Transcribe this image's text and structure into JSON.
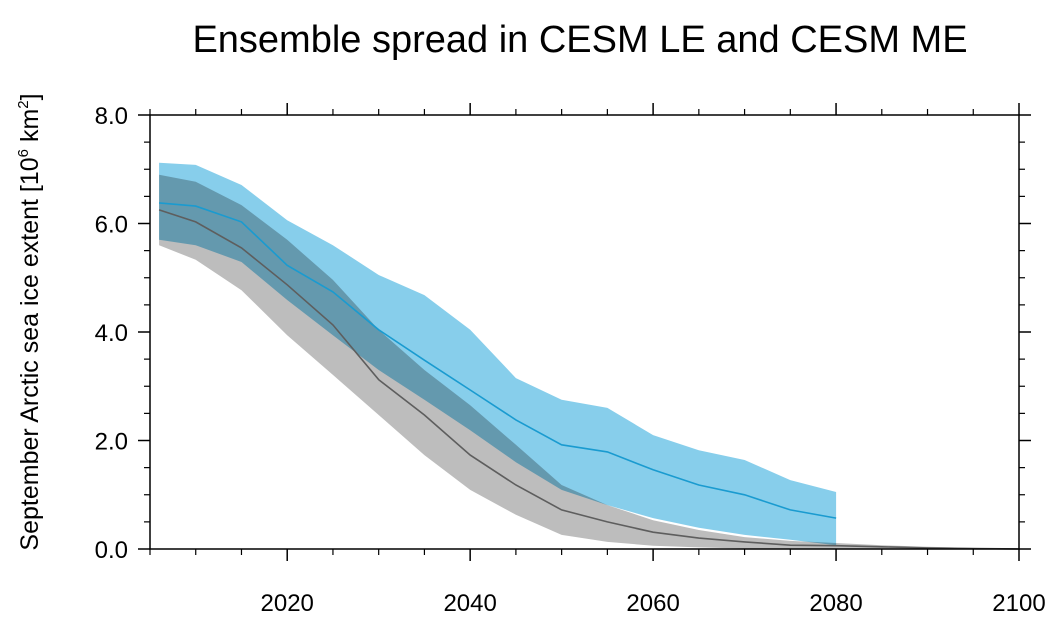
{
  "chart_data": {
    "type": "band",
    "title": "Ensemble spread in CESM LE and CESM ME",
    "ylabel": [
      "September Arctic sea ice extent [10",
      "6",
      " km",
      "2",
      "]"
    ],
    "xlim": [
      2005,
      2100
    ],
    "ylim": [
      0,
      8
    ],
    "xticks": [
      2020,
      2040,
      2060,
      2080,
      2100
    ],
    "xminorticks": [
      2005,
      2010,
      2015,
      2025,
      2030,
      2035,
      2045,
      2050,
      2055,
      2065,
      2070,
      2075,
      2085,
      2090,
      2095
    ],
    "yticks": [
      {
        "value": 0,
        "label": "0.0"
      },
      {
        "value": 2,
        "label": "2.0"
      },
      {
        "value": 4,
        "label": "4.0"
      },
      {
        "value": 6,
        "label": "6.0"
      },
      {
        "value": 8,
        "label": "8.0"
      }
    ],
    "yminorticks": [
      0.5,
      1,
      1.5,
      2.5,
      3,
      3.5,
      4.5,
      5,
      5.5,
      6.5,
      7,
      7.5
    ],
    "series": [
      {
        "color": "#1a9bd0",
        "fill": "#87ceeb",
        "x": [
          2006,
          2010,
          2015,
          2020,
          2025,
          2030,
          2035,
          2040,
          2045,
          2050,
          2055,
          2060,
          2065,
          2070,
          2075,
          2080
        ],
        "values": [
          6.38,
          6.32,
          6.03,
          5.23,
          4.74,
          4.04,
          3.48,
          2.93,
          2.38,
          1.92,
          1.79,
          1.46,
          1.18,
          1.0,
          0.72,
          0.57
        ],
        "upper": [
          7.12,
          7.08,
          6.71,
          6.06,
          5.6,
          5.05,
          4.68,
          4.04,
          3.15,
          2.75,
          2.6,
          2.1,
          1.82,
          1.64,
          1.27,
          1.05
        ],
        "lower": [
          5.7,
          5.6,
          5.29,
          4.59,
          3.94,
          3.3,
          2.75,
          2.19,
          1.6,
          1.09,
          0.81,
          0.57,
          0.39,
          0.26,
          0.17,
          0.07
        ]
      },
      {
        "color": "#5e5e5e",
        "fill": "#bdbdbd",
        "x": [
          2006,
          2010,
          2015,
          2020,
          2025,
          2030,
          2035,
          2040,
          2045,
          2050,
          2055,
          2060,
          2065,
          2070,
          2075,
          2080,
          2085,
          2090,
          2095,
          2100
        ],
        "values": [
          6.25,
          6.03,
          5.55,
          4.87,
          4.13,
          3.12,
          2.47,
          1.73,
          1.18,
          0.72,
          0.5,
          0.31,
          0.2,
          0.13,
          0.07,
          0.06,
          0.04,
          0.02,
          0.01,
          0
        ],
        "upper": [
          6.9,
          6.77,
          6.34,
          5.7,
          4.96,
          4.04,
          3.3,
          2.65,
          1.92,
          1.18,
          0.81,
          0.53,
          0.35,
          0.22,
          0.15,
          0.11,
          0.07,
          0.04,
          0.02,
          0
        ],
        "lower": [
          5.6,
          5.33,
          4.77,
          3.94,
          3.21,
          2.47,
          1.73,
          1.09,
          0.63,
          0.26,
          0.13,
          0.06,
          0.03,
          0.01,
          0,
          0,
          0,
          0,
          0,
          0
        ]
      }
    ]
  }
}
